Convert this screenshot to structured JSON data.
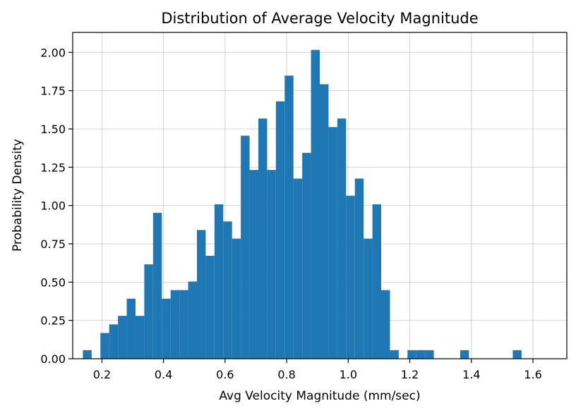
{
  "chart_data": {
    "type": "bar",
    "title": "Distribution of Average Velocity Magnitude",
    "xlabel": "Avg Velocity Magnitude (mm/sec)",
    "ylabel": "Probability Density",
    "xlim": [
      0.105,
      1.71
    ],
    "ylim": [
      0,
      2.13
    ],
    "xticks": [
      0.2,
      0.4,
      0.6,
      0.8,
      1.0,
      1.2,
      1.4,
      1.6
    ],
    "xtick_labels": [
      "0.2",
      "0.4",
      "0.6",
      "0.8",
      "1.0",
      "1.2",
      "1.4",
      "1.6"
    ],
    "yticks": [
      0.0,
      0.25,
      0.5,
      0.75,
      1.0,
      1.25,
      1.5,
      1.75,
      2.0
    ],
    "ytick_labels": [
      "0.00",
      "0.25",
      "0.50",
      "0.75",
      "1.00",
      "1.25",
      "1.50",
      "1.75",
      "2.00"
    ],
    "grid": true,
    "bar_color": "#1f77b4",
    "bin_start": 0.138,
    "bin_width": 0.0285,
    "values": [
      0.056,
      0,
      0.168,
      0.224,
      0.28,
      0.392,
      0.28,
      0.616,
      0.952,
      0.392,
      0.448,
      0.448,
      0.504,
      0.84,
      0.672,
      1.008,
      0.896,
      0.784,
      1.456,
      1.232,
      1.568,
      1.232,
      1.68,
      1.848,
      1.176,
      1.344,
      2.016,
      1.792,
      1.512,
      1.568,
      1.064,
      1.176,
      0.784,
      1.008,
      0.448,
      0.056,
      0,
      0.056,
      0.056,
      0.056,
      0,
      0,
      0,
      0.056,
      0,
      0,
      0,
      0,
      0,
      0.056
    ]
  }
}
